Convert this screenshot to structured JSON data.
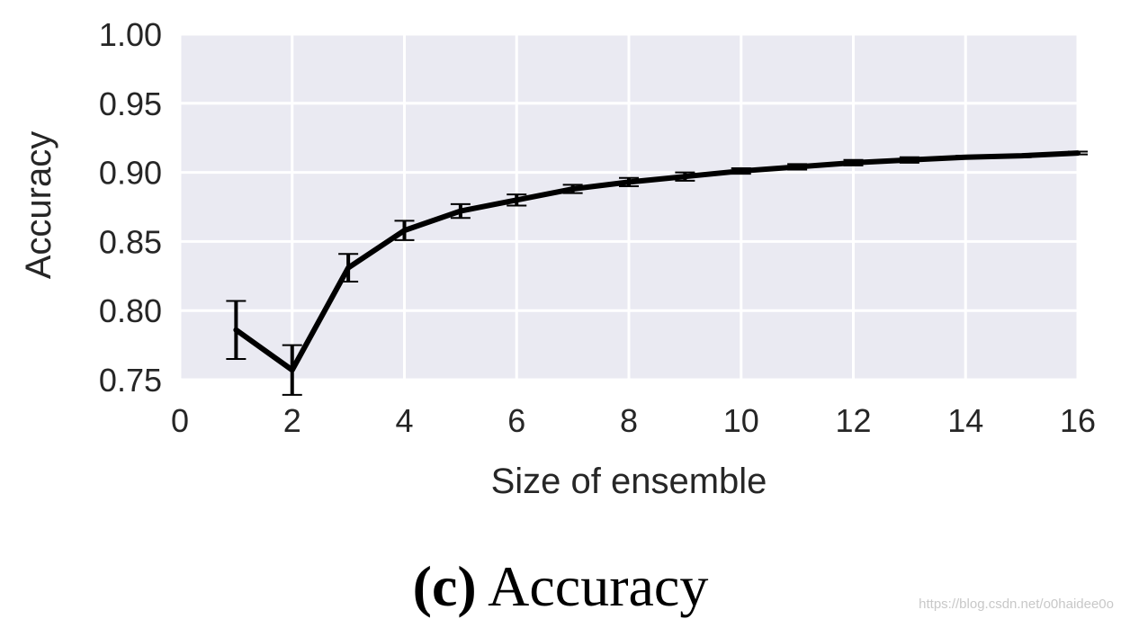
{
  "chart_data": {
    "type": "line",
    "xlabel": "Size of ensemble",
    "ylabel": "Accuracy",
    "xlim": [
      0,
      16
    ],
    "ylim": [
      0.75,
      1.0
    ],
    "xticks": [
      0,
      2,
      4,
      6,
      8,
      10,
      12,
      14,
      16
    ],
    "yticks": [
      0.75,
      0.8,
      0.85,
      0.9,
      0.95,
      1.0
    ],
    "xtick_labels": [
      "0",
      "2",
      "4",
      "6",
      "8",
      "10",
      "12",
      "14",
      "16"
    ],
    "ytick_labels": [
      "0.75",
      "0.80",
      "0.85",
      "0.90",
      "0.95",
      "1.00"
    ],
    "grid": true,
    "background": "#eaeaf2",
    "line_color": "#000000",
    "series": [
      {
        "x": [
          1,
          2,
          3,
          4,
          5,
          6,
          7,
          8,
          9,
          10,
          11,
          12,
          13,
          14,
          15,
          16
        ],
        "y": [
          0.786,
          0.757,
          0.831,
          0.858,
          0.872,
          0.88,
          0.888,
          0.893,
          0.897,
          0.901,
          0.904,
          0.907,
          0.909,
          0.911,
          0.912,
          0.914
        ],
        "yerr": [
          0.021,
          0.018,
          0.01,
          0.007,
          0.005,
          0.004,
          0.003,
          0.003,
          0.003,
          0.002,
          0.002,
          0.002,
          0.002,
          0.001,
          0.001,
          0.001
        ]
      }
    ]
  },
  "caption": {
    "prefix": "(c)",
    "text": "Accuracy"
  },
  "watermark": "https://blog.csdn.net/o0haidee0o"
}
